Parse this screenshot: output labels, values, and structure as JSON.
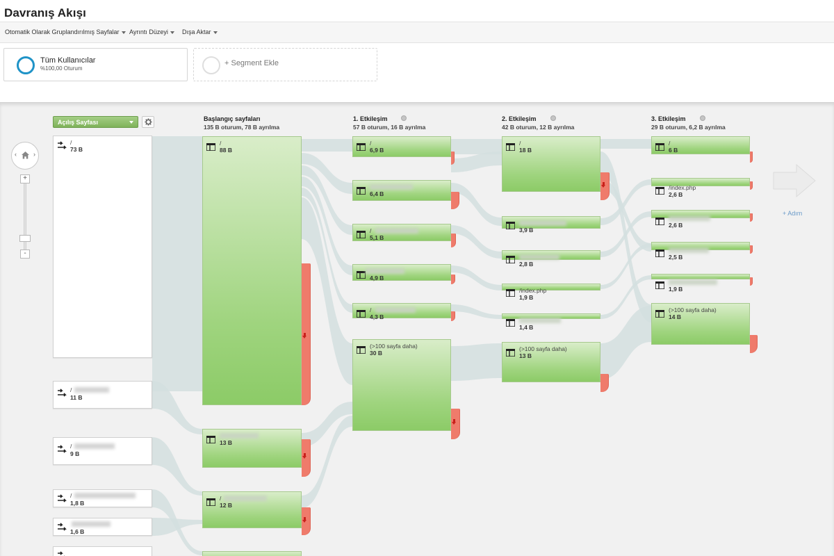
{
  "header": {
    "title": "Davranış Akışı"
  },
  "toolbar": {
    "items": [
      {
        "label": "Otomatik Olarak Gruplandırılmış Sayfalar"
      },
      {
        "label": "Ayrıntı Düzeyi"
      },
      {
        "label": "Dışa Aktar"
      }
    ]
  },
  "segments": {
    "active": {
      "name": "Tüm Kullanıcılar",
      "sub": "%100,00 Oturum",
      "ring_color": "#1f93c7"
    },
    "add_label": "+ Segment Ekle"
  },
  "flow": {
    "dimension_label": "Açılış Sayfası",
    "add_step_label": "+ Adım",
    "columns": [
      {
        "id": "c1",
        "title": "Başlangıç sayfaları",
        "sub": "135 B oturum, 78 B ayrılma"
      },
      {
        "id": "c2",
        "title": "1. Etkileşim",
        "sub": "57 B oturum, 16 B ayrılma"
      },
      {
        "id": "c3",
        "title": "2. Etkileşim",
        "sub": "42 B oturum, 12 B ayrılma"
      },
      {
        "id": "c4",
        "title": "3. Etkileşim",
        "sub": "29 B oturum, 6,2 B ayrılma"
      }
    ],
    "landing_nodes": [
      {
        "label": "/",
        "value": "73 B"
      },
      {
        "label": "/",
        "value": "11 B"
      },
      {
        "label": "/",
        "value": "9 B"
      },
      {
        "label": "/",
        "value": "1,8 B"
      },
      {
        "label": "",
        "value": "1,6 B"
      },
      {
        "label": "",
        "value": ""
      }
    ],
    "start_nodes": [
      {
        "label": "/",
        "value": "88 B"
      },
      {
        "label": "",
        "value": "13 B"
      },
      {
        "label": "/",
        "value": "12 B"
      },
      {
        "label": "",
        "value": ""
      }
    ],
    "step1_nodes": [
      {
        "label": "/",
        "value": "6,9 B"
      },
      {
        "label": "",
        "value": "6,4 B"
      },
      {
        "label": "/",
        "value": "5,1 B"
      },
      {
        "label": "",
        "value": "4,9 B"
      },
      {
        "label": "/",
        "value": "4,3 B"
      },
      {
        "label": "(>100 sayfa daha)",
        "value": "30 B"
      }
    ],
    "step2_nodes": [
      {
        "label": "/",
        "value": "18 B"
      },
      {
        "label": "",
        "value": "3,9 B"
      },
      {
        "label": "",
        "value": "2,8 B"
      },
      {
        "label": "/index.php",
        "value": "1,9 B"
      },
      {
        "label": "",
        "value": "1,4 B"
      },
      {
        "label": "(>100 sayfa daha)",
        "value": "13 B"
      }
    ],
    "step3_nodes": [
      {
        "label": "/",
        "value": "6 B"
      },
      {
        "label": "/index.php",
        "value": "2,6 B"
      },
      {
        "label": "",
        "value": "2,6 B"
      },
      {
        "label": "",
        "value": "2,5 B"
      },
      {
        "label": "",
        "value": "1,9 B"
      },
      {
        "label": "(>100 sayfa daha)",
        "value": "14 B"
      }
    ]
  }
}
